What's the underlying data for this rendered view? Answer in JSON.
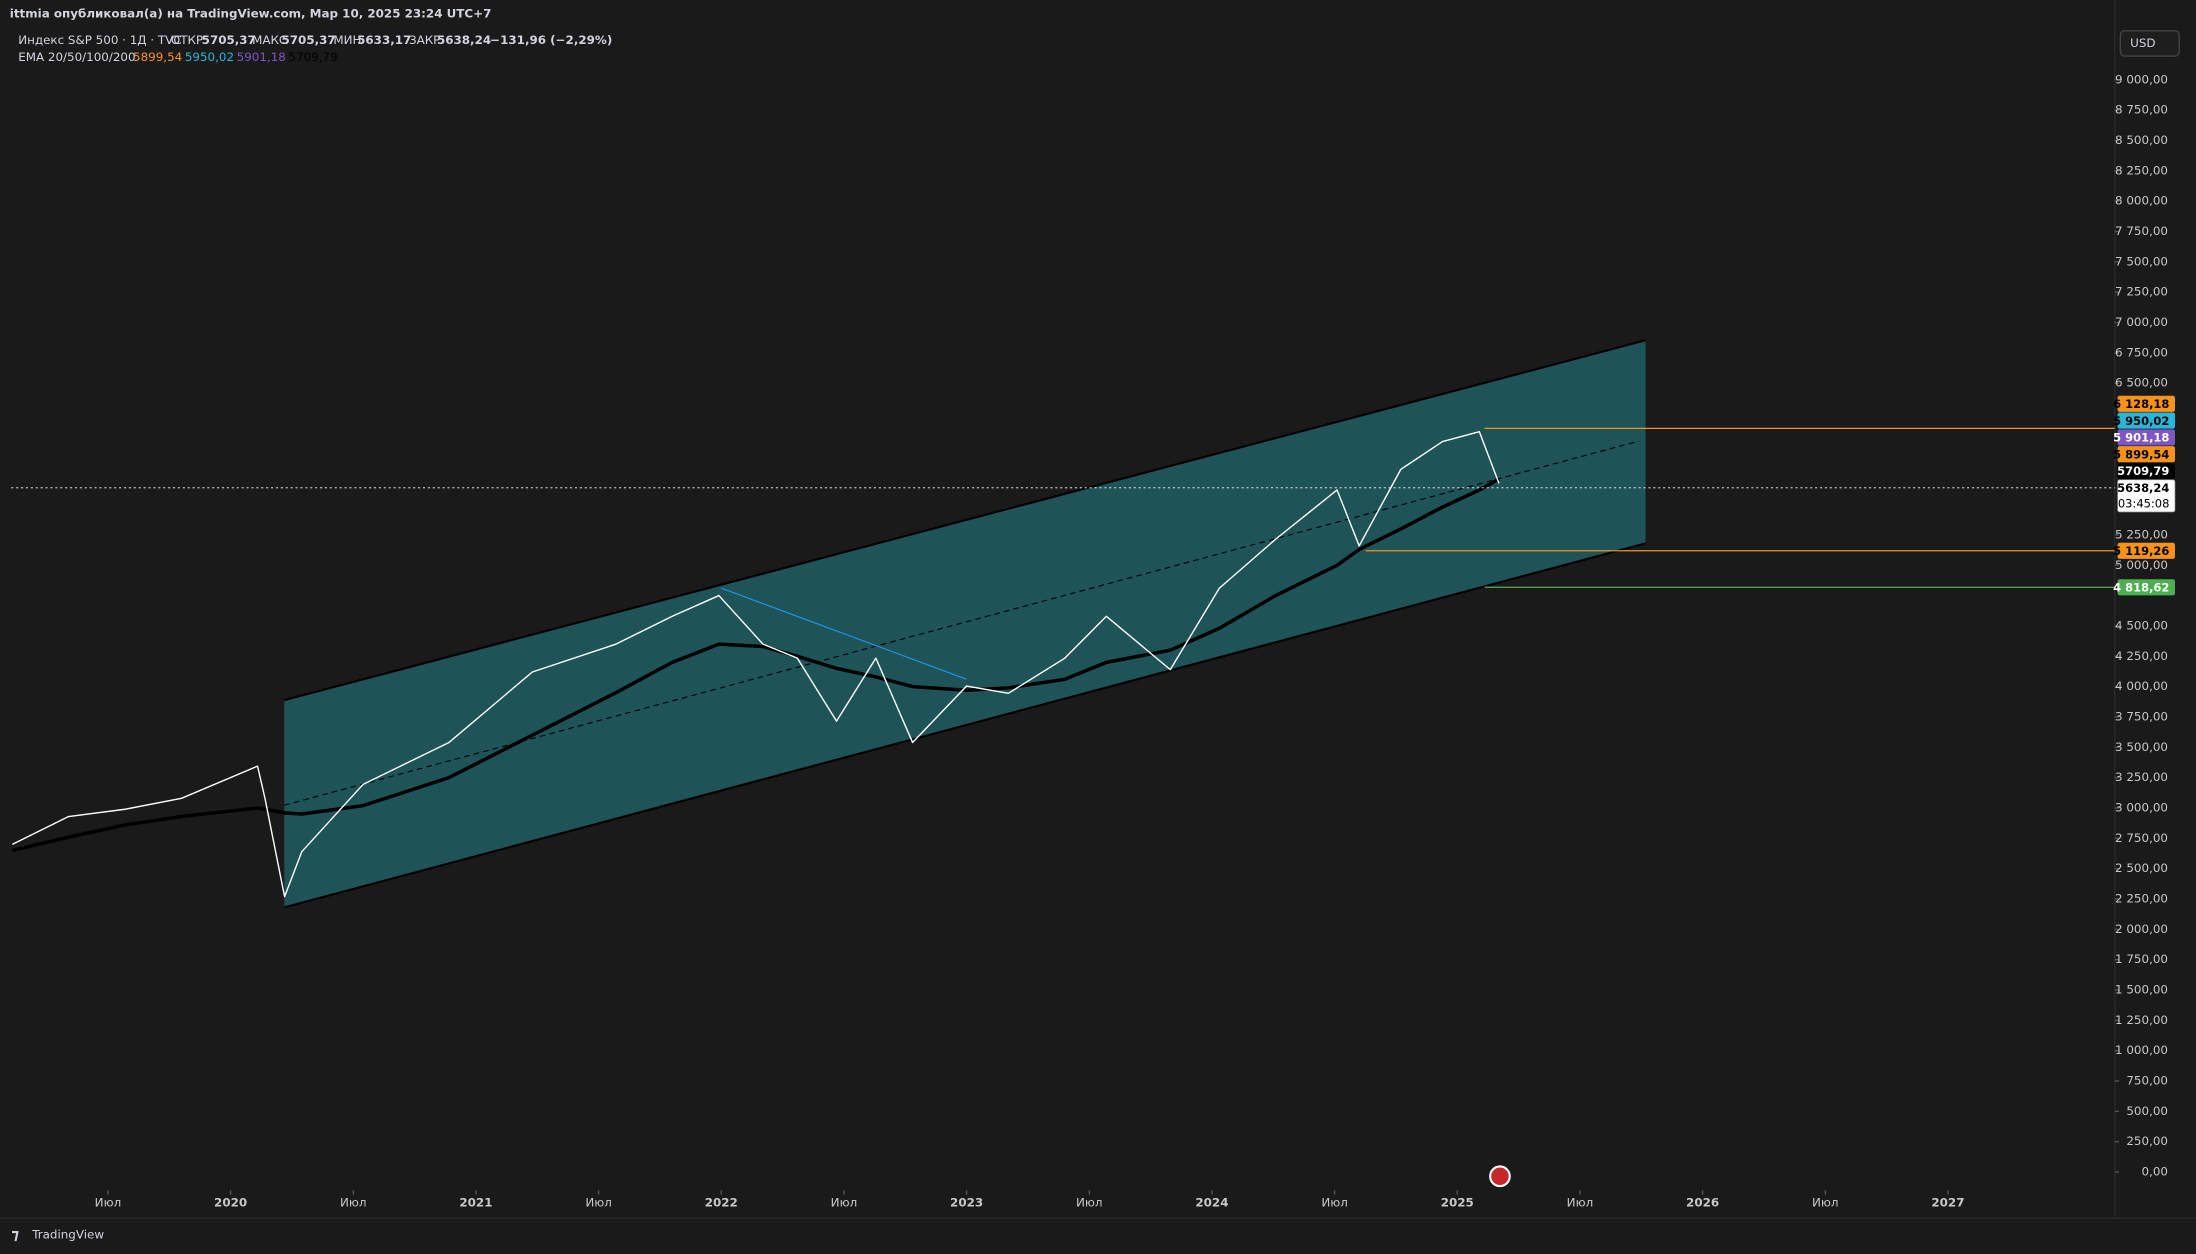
{
  "header": {
    "publisher": "ittmia опубликовал(а) на TradingView.com, Мар 10, 2025 23:24 UTC+7",
    "symbol": "Индекс S&P 500 · 1Д · TVC",
    "open_label": "ОТКР",
    "open": "5705,37",
    "high_label": "МАКС",
    "high": "5705,37",
    "low_label": "МИН",
    "low": "5633,17",
    "close_label": "ЗАКР",
    "close": "5638,24",
    "change": "−131,96 (−2,29%)",
    "ema_label": "EMA 20/50/100/200",
    "ema_values": [
      {
        "text": "5899,54",
        "color": "#f7931a"
      },
      {
        "text": "5950,02",
        "color": "#29b6d8"
      },
      {
        "text": "5901,18",
        "color": "#7e57c2"
      },
      {
        "text": "5709,79",
        "color": "#000000"
      }
    ],
    "currency": "USD"
  },
  "chart_data": {
    "type": "line",
    "x": [
      2019.11,
      2019.34,
      2019.57,
      2019.8,
      2020.11,
      2020.14,
      2020.22,
      2020.29,
      2020.54,
      2020.89,
      2021.23,
      2021.57,
      2021.8,
      2021.99,
      2022.17,
      2022.31,
      2022.47,
      2022.63,
      2022.78,
      2023.0,
      2023.17,
      2023.4,
      2023.57,
      2023.83,
      2024.03,
      2024.26,
      2024.51,
      2024.6,
      2024.77,
      2024.94,
      2025.09,
      2025.17
    ],
    "series": [
      {
        "color": "#ffffff",
        "values": [
          2700,
          2930,
          2990,
          3080,
          3345,
          3080,
          2270,
          2640,
          3195,
          3540,
          4120,
          4350,
          4580,
          4750,
          4350,
          4235,
          3715,
          4235,
          3540,
          4005,
          3945,
          4235,
          4580,
          4140,
          4810,
          5215,
          5620,
          5160,
          5790,
          6020,
          6100,
          5675
        ]
      },
      {
        "color": "#000000",
        "values": [
          2650,
          2760,
          2860,
          2930,
          3000,
          2990,
          2960,
          2950,
          3020,
          3250,
          3600,
          3950,
          4200,
          4350,
          4330,
          4250,
          4150,
          4080,
          4000,
          3970,
          3990,
          4060,
          4200,
          4300,
          4480,
          4750,
          5000,
          5130,
          5300,
          5480,
          5620,
          5710
        ]
      }
    ],
    "xlim": [
      2019.06,
      2027.68
    ],
    "xticks": [
      {
        "value": 2019.5,
        "label": "Июл"
      },
      2020,
      {
        "value": 2020.5,
        "label": "Июл"
      },
      2021,
      {
        "value": 2021.5,
        "label": "Июл"
      },
      2022,
      {
        "value": 2022.5,
        "label": "Июл"
      },
      2023,
      {
        "value": 2023.5,
        "label": "Июл"
      },
      2024,
      {
        "value": 2024.5,
        "label": "Июл"
      },
      2025,
      {
        "value": 2025.5,
        "label": "Июл"
      },
      2026,
      {
        "value": 2026.5,
        "label": "Июл"
      },
      2027
    ],
    "ylim": [
      -150,
      9427
    ],
    "yticks": [
      {
        "value": 9000,
        "label": "9 000,00"
      },
      {
        "value": 8750,
        "label": "8 750,00"
      },
      {
        "value": 8500,
        "label": "8 500,00"
      },
      {
        "value": 8250,
        "label": "8 250,00"
      },
      {
        "value": 8000,
        "label": "8 000,00"
      },
      {
        "value": 7750,
        "label": "7 750,00"
      },
      {
        "value": 7500,
        "label": "7 500,00"
      },
      {
        "value": 7250,
        "label": "7 250,00"
      },
      {
        "value": 7000,
        "label": "7 000,00"
      },
      {
        "value": 6750,
        "label": "6 750,00"
      },
      {
        "value": 6500,
        "label": "6 500,00"
      },
      {
        "value": 5250,
        "label": "5 250,00"
      },
      {
        "value": 5000,
        "label": "5 000,00"
      },
      {
        "value": 4500,
        "label": "4 500,00"
      },
      {
        "value": 4250,
        "label": "4 250,00"
      },
      {
        "value": 4000,
        "label": "4 000,00"
      },
      {
        "value": 3750,
        "label": "3 750,00"
      },
      {
        "value": 3500,
        "label": "3 500,00"
      },
      {
        "value": 3250,
        "label": "3 250,00"
      },
      {
        "value": 3000,
        "label": "3 000,00"
      },
      {
        "value": 2750,
        "label": "2 750,00"
      },
      {
        "value": 2500,
        "label": "2 500,00"
      },
      {
        "value": 2250,
        "label": "2 250,00"
      },
      {
        "value": 2000,
        "label": "2 000,00"
      },
      {
        "value": 1750,
        "label": "1 750,00"
      },
      {
        "value": 1500,
        "label": "1 500,00"
      },
      {
        "value": 1250,
        "label": "1 250,00"
      },
      {
        "value": 1000,
        "label": "1 000,00"
      },
      {
        "value": 750,
        "label": "750,00"
      },
      {
        "value": 500,
        "label": "500,00"
      },
      {
        "value": 250,
        "label": "250,00"
      },
      {
        "value": 0,
        "label": "0,00"
      }
    ],
    "price_tags": [
      {
        "value": 6128.18,
        "label": "6 128,18",
        "color": "#f7931a",
        "line": true
      },
      {
        "value": 5950.02,
        "label": "5 950,02",
        "color": "#29b6d8",
        "line": false
      },
      {
        "value": 5901.18,
        "label": "5 901,18",
        "color": "#7e57c2",
        "line": false
      },
      {
        "value": 5899.54,
        "label": "5 899,54",
        "color": "#f7931a",
        "line": false
      },
      {
        "value": 5709.79,
        "label": "5709,79",
        "color": "#000000",
        "line": false
      },
      {
        "value": 5638.24,
        "label": "5638,24",
        "color": "#ffffff",
        "line": true,
        "countdown": "03:45:08"
      },
      {
        "value": 5119.26,
        "label": "5 119,26",
        "color": "#f7931a",
        "line": true
      },
      {
        "value": 4818.62,
        "label": "4 818,62",
        "color": "#4caf50",
        "line": true
      }
    ]
  },
  "footer": {
    "brand": "TradingView"
  }
}
